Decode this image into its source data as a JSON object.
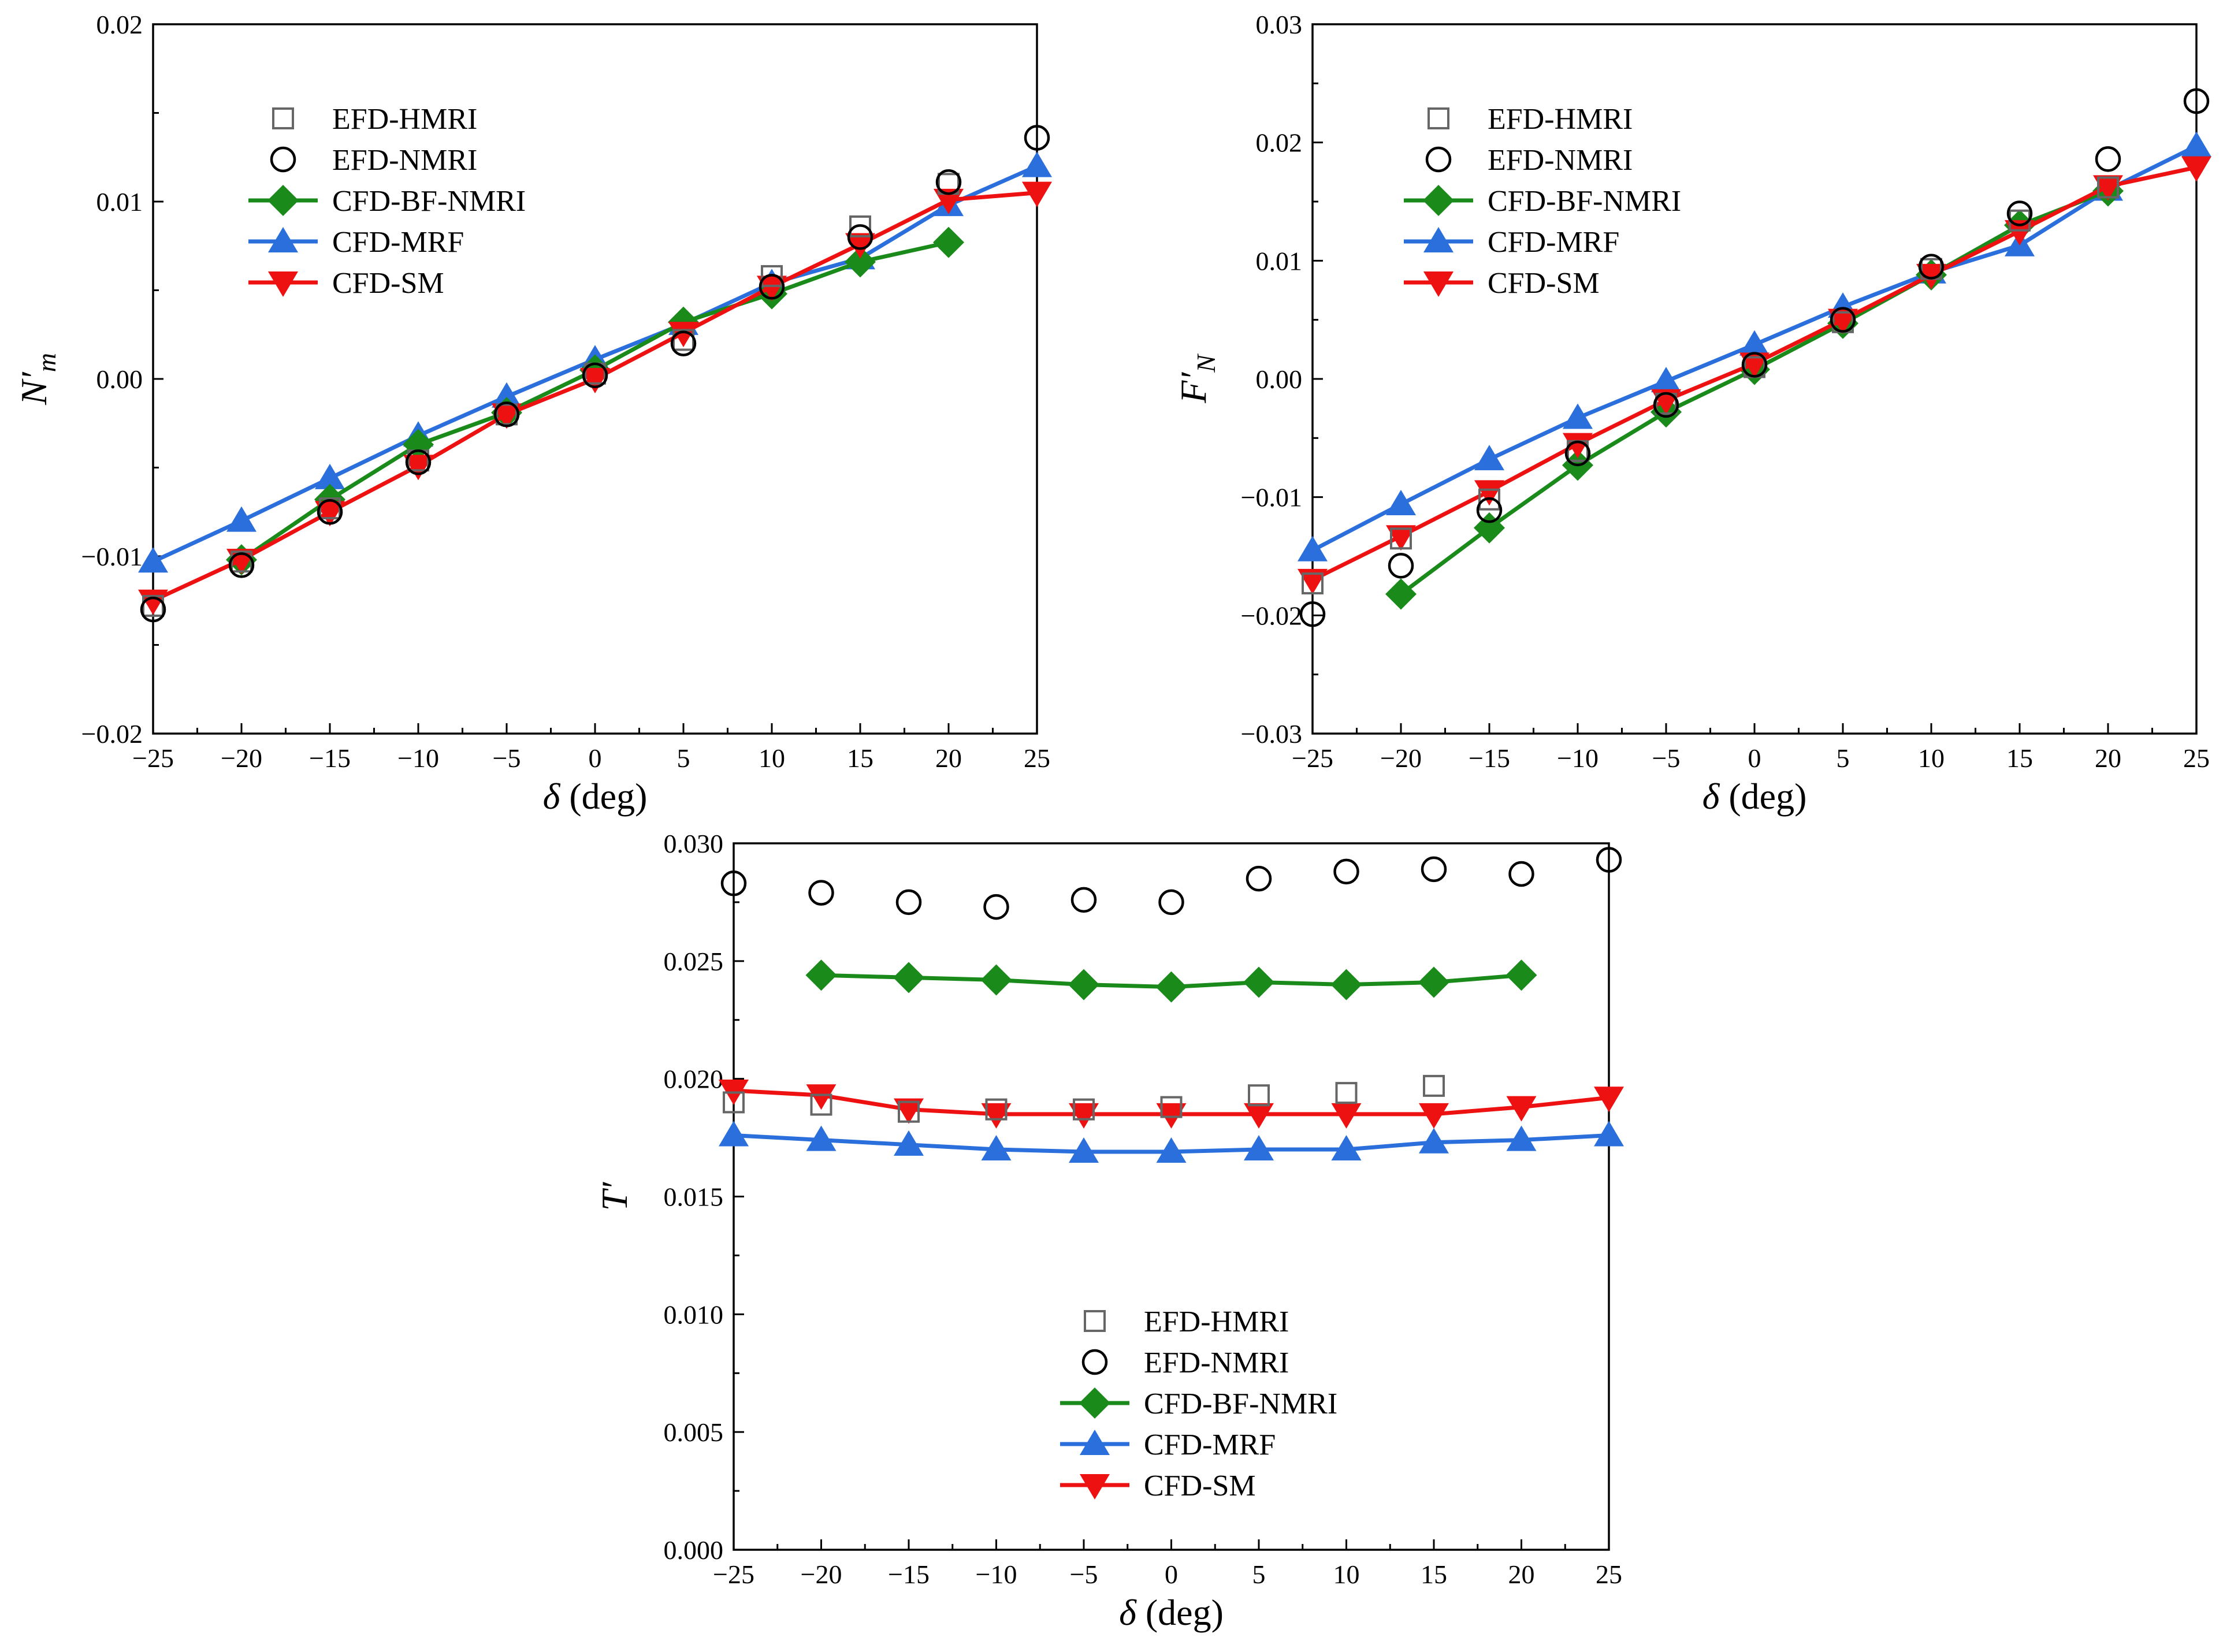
{
  "colors": {
    "EFD-HMRI": "#666666",
    "EFD-NMRI": "#000000",
    "CFD-BF-NMRI": "#1a8a1a",
    "CFD-MRF": "#2a6fdb",
    "CFD-SM": "#ee1111"
  },
  "chart_data": [
    {
      "type": "line",
      "id": "nm",
      "xlabel_symbol": "δ",
      "xlabel_unit": " (deg)",
      "ylabel_main": "N′",
      "ylabel_sub": "m",
      "xlim": [
        -25,
        25
      ],
      "ylim": [
        -0.02,
        0.02
      ],
      "xticks": [
        "−25",
        "−20",
        "−15",
        "−10",
        "−5",
        "0",
        "5",
        "10",
        "15",
        "20",
        "25"
      ],
      "yticks": [
        "−0.02",
        "−0.01",
        "0.00",
        "0.01",
        "0.02"
      ],
      "legend_position": "top-left",
      "series": [
        {
          "name": "EFD-HMRI",
          "marker": "square",
          "line": false,
          "x": [
            -25,
            -20,
            -15,
            -10,
            -5,
            0,
            5,
            10,
            15,
            20
          ],
          "y": [
            -0.0128,
            -0.0103,
            -0.0073,
            -0.0046,
            -0.002,
            0.0003,
            0.0022,
            0.0058,
            0.0086,
            0.011
          ]
        },
        {
          "name": "EFD-NMRI",
          "marker": "circle",
          "line": false,
          "x": [
            -25,
            -20,
            -15,
            -10,
            -5,
            0,
            5,
            10,
            15,
            20,
            25
          ],
          "y": [
            -0.013,
            -0.0105,
            -0.0075,
            -0.0047,
            -0.002,
            0.0002,
            0.002,
            0.0052,
            0.008,
            0.0111,
            0.0136
          ]
        },
        {
          "name": "CFD-BF-NMRI",
          "marker": "diamond",
          "line": true,
          "x": [
            -20,
            -15,
            -10,
            -5,
            0,
            5,
            10,
            15,
            20
          ],
          "y": [
            -0.0102,
            -0.0068,
            -0.0037,
            -0.0019,
            0.0005,
            0.0032,
            0.0048,
            0.0066,
            0.0077
          ]
        },
        {
          "name": "CFD-MRF",
          "marker": "triangle-up",
          "line": true,
          "x": [
            -25,
            -20,
            -15,
            -10,
            -5,
            0,
            5,
            10,
            15,
            20,
            25
          ],
          "y": [
            -0.0103,
            -0.008,
            -0.0056,
            -0.0032,
            -0.001,
            0.0011,
            0.0031,
            0.0054,
            0.0068,
            0.0098,
            0.012
          ]
        },
        {
          "name": "CFD-SM",
          "marker": "triangle-down",
          "line": true,
          "x": [
            -25,
            -20,
            -15,
            -10,
            -5,
            0,
            5,
            10,
            15,
            20,
            25
          ],
          "y": [
            -0.0125,
            -0.0102,
            -0.0075,
            -0.0049,
            -0.002,
            0.0,
            0.0026,
            0.0052,
            0.0076,
            0.0101,
            0.0105
          ]
        }
      ]
    },
    {
      "type": "line",
      "id": "fn",
      "xlabel_symbol": "δ",
      "xlabel_unit": " (deg)",
      "ylabel_main": "F′",
      "ylabel_sub": "N",
      "xlim": [
        -25,
        25
      ],
      "ylim": [
        -0.03,
        0.03
      ],
      "xticks": [
        "−25",
        "−20",
        "−15",
        "−10",
        "−5",
        "0",
        "5",
        "10",
        "15",
        "20",
        "25"
      ],
      "yticks": [
        "−0.03",
        "−0.02",
        "−0.01",
        "0.00",
        "0.01",
        "0.02",
        "0.03"
      ],
      "legend_position": "top-left",
      "series": [
        {
          "name": "EFD-HMRI",
          "marker": "square",
          "line": false,
          "x": [
            -25,
            -20,
            -15,
            -10,
            -5,
            0,
            5,
            10,
            15,
            20
          ],
          "y": [
            -0.0173,
            -0.0135,
            -0.0102,
            -0.0061,
            -0.0021,
            0.001,
            0.0048,
            0.0093,
            0.0134,
            0.0162
          ]
        },
        {
          "name": "EFD-NMRI",
          "marker": "circle",
          "line": false,
          "x": [
            -25,
            -20,
            -15,
            -10,
            -5,
            0,
            5,
            10,
            15,
            20,
            25
          ],
          "y": [
            -0.0199,
            -0.0158,
            -0.0111,
            -0.0063,
            -0.0022,
            0.0012,
            0.005,
            0.0095,
            0.014,
            0.0186,
            0.0235
          ]
        },
        {
          "name": "CFD-BF-NMRI",
          "marker": "diamond",
          "line": true,
          "x": [
            -20,
            -15,
            -10,
            -5,
            0,
            5,
            10,
            15,
            20
          ],
          "y": [
            -0.0182,
            -0.0126,
            -0.0073,
            -0.0028,
            0.0008,
            0.0047,
            0.0088,
            0.013,
            0.0159
          ]
        },
        {
          "name": "CFD-MRF",
          "marker": "triangle-up",
          "line": true,
          "x": [
            -25,
            -20,
            -15,
            -10,
            -5,
            0,
            5,
            10,
            15,
            20,
            25
          ],
          "y": [
            -0.0145,
            -0.0106,
            -0.0068,
            -0.0033,
            -0.0002,
            0.0029,
            0.0061,
            0.009,
            0.0113,
            0.016,
            0.0197
          ]
        },
        {
          "name": "CFD-SM",
          "marker": "triangle-down",
          "line": true,
          "x": [
            -25,
            -20,
            -15,
            -10,
            -5,
            0,
            5,
            10,
            15,
            20,
            25
          ],
          "y": [
            -0.017,
            -0.0133,
            -0.0095,
            -0.0055,
            -0.0018,
            0.0013,
            0.005,
            0.0088,
            0.0125,
            0.0163,
            0.0179
          ]
        }
      ]
    },
    {
      "type": "line",
      "id": "t",
      "xlabel_symbol": "δ",
      "xlabel_unit": " (deg)",
      "ylabel_main": "T′",
      "ylabel_sub": "",
      "xlim": [
        -25,
        25
      ],
      "ylim": [
        0.0,
        0.03
      ],
      "xticks": [
        "−25",
        "−20",
        "−15",
        "−10",
        "−5",
        "0",
        "5",
        "10",
        "15",
        "20",
        "25"
      ],
      "yticks": [
        "0.000",
        "0.005",
        "0.010",
        "0.015",
        "0.020",
        "0.025",
        "0.030"
      ],
      "legend_position": "bottom-center",
      "series": [
        {
          "name": "EFD-HMRI",
          "marker": "square",
          "line": false,
          "x": [
            -25,
            -20,
            -15,
            -10,
            -5,
            0,
            5,
            10,
            15
          ],
          "y": [
            0.019,
            0.0189,
            0.0186,
            0.0187,
            0.0187,
            0.0188,
            0.0193,
            0.0194,
            0.0197
          ]
        },
        {
          "name": "EFD-NMRI",
          "marker": "circle",
          "line": false,
          "x": [
            -25,
            -20,
            -15,
            -10,
            -5,
            0,
            5,
            10,
            15,
            20,
            25
          ],
          "y": [
            0.0283,
            0.0279,
            0.0275,
            0.0273,
            0.0276,
            0.0275,
            0.0285,
            0.0288,
            0.0289,
            0.0287,
            0.0293
          ]
        },
        {
          "name": "CFD-BF-NMRI",
          "marker": "diamond",
          "line": true,
          "x": [
            -20,
            -15,
            -10,
            -5,
            0,
            5,
            10,
            15,
            20
          ],
          "y": [
            0.0244,
            0.0243,
            0.0242,
            0.024,
            0.0239,
            0.0241,
            0.024,
            0.0241,
            0.0244
          ]
        },
        {
          "name": "CFD-MRF",
          "marker": "triangle-up",
          "line": true,
          "x": [
            -25,
            -20,
            -15,
            -10,
            -5,
            0,
            5,
            10,
            15,
            20,
            25
          ],
          "y": [
            0.0176,
            0.0174,
            0.0172,
            0.017,
            0.0169,
            0.0169,
            0.017,
            0.017,
            0.0173,
            0.0174,
            0.0176
          ]
        },
        {
          "name": "CFD-SM",
          "marker": "triangle-down",
          "line": true,
          "x": [
            -25,
            -20,
            -15,
            -10,
            -5,
            0,
            5,
            10,
            15,
            20,
            25
          ],
          "y": [
            0.0195,
            0.0193,
            0.0187,
            0.0185,
            0.0185,
            0.0185,
            0.0185,
            0.0185,
            0.0185,
            0.0188,
            0.0192
          ]
        }
      ]
    }
  ]
}
